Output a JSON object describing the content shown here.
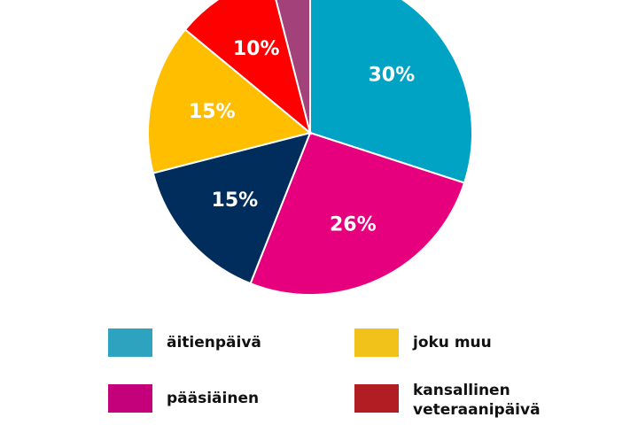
{
  "chart_data": {
    "type": "pie",
    "title": "",
    "start_angle_deg": 0,
    "direction": "clockwise",
    "slices": [
      {
        "label": "äitienpäivä",
        "value": 30,
        "display": "30%",
        "color": "#00a3c4"
      },
      {
        "label": "pääsiäinen",
        "value": 26,
        "display": "26%",
        "color": "#e6007e"
      },
      {
        "label": "",
        "value": 15,
        "display": "15%",
        "color": "#002d5c"
      },
      {
        "label": "joku muu",
        "value": 15,
        "display": "15%",
        "color": "#ffbe00"
      },
      {
        "label": "kansallinen veteraanipäivä",
        "value": 10,
        "display": "10%",
        "color": "#ff0000"
      },
      {
        "label": "",
        "value": 4,
        "display": "4%",
        "color": "#a3417a"
      }
    ],
    "legend": [
      {
        "label": "äitienpäivä",
        "color": "#2ea3c0"
      },
      {
        "label": "joku muu",
        "color": "#f0c21a"
      },
      {
        "label": "pääsiäinen",
        "color": "#c4007a"
      },
      {
        "label": "kansallinen veteraanipäivä",
        "color": "#b01e23"
      }
    ],
    "legend_position": "bottom"
  },
  "legend": {
    "items": [
      {
        "label": "äitienpäivä",
        "color": "#2ea3c0"
      },
      {
        "label": "joku muu",
        "color": "#f0c21a"
      },
      {
        "label": "pääsiäinen",
        "color": "#c4007a"
      },
      {
        "label": "kansallinen veteraanipäivä",
        "color": "#b01e23"
      }
    ]
  }
}
